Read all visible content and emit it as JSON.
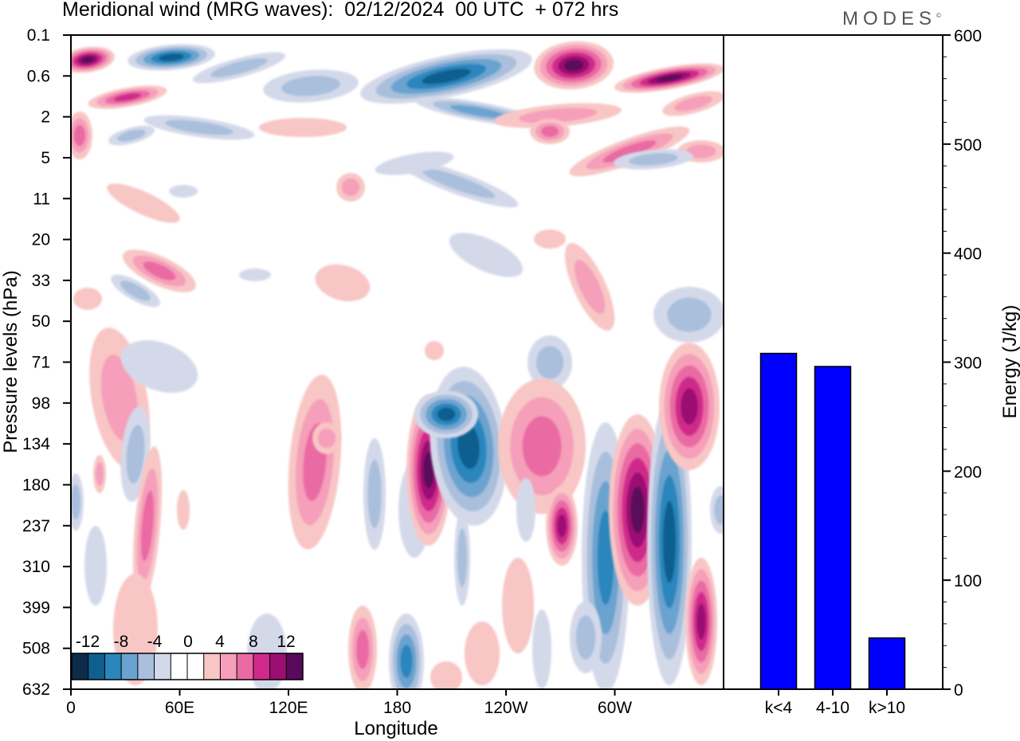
{
  "header": {
    "title": "Meridional wind (MRG waves):  02/12/2024  00 UTC  + 072 hrs",
    "brand": "MODES"
  },
  "chart_data": [
    {
      "type": "heatmap",
      "title": "Meridional wind (MRG waves):  02/12/2024  00 UTC  + 072 hrs",
      "xlabel": "Longitude",
      "ylabel": "Pressure levels (hPa)",
      "x_ticks": [
        "0",
        "60E",
        "120E",
        "180",
        "120W",
        "60W"
      ],
      "y_ticks": [
        "0.1",
        "0.6",
        "2",
        "5",
        "11",
        "20",
        "33",
        "50",
        "71",
        "98",
        "134",
        "180",
        "237",
        "310",
        "399",
        "508",
        "632"
      ],
      "colorbar": {
        "labels": [
          "-12",
          "-8",
          "-4",
          "0",
          "4",
          "8",
          "12"
        ],
        "colors": [
          "#0c2c4a",
          "#0f5f8f",
          "#2a86bd",
          "#6aa3cf",
          "#a9bfdc",
          "#d4d9ea",
          "#ffffff",
          "#ffffff",
          "#f8c6c5",
          "#f59fba",
          "#ea6ba3",
          "#cf2a8b",
          "#9b0f72",
          "#5a0a5a"
        ]
      },
      "negative_color": "#6aa3cf",
      "positive_color": "#ea6ba3"
    },
    {
      "type": "bar",
      "categories": [
        "k<4",
        "4-10",
        "k>10"
      ],
      "values": [
        308,
        296,
        47
      ],
      "ylabel": "Energy (J/kg)",
      "ylim": [
        0,
        600
      ],
      "y_ticks": [
        0,
        100,
        200,
        300,
        400,
        500,
        600
      ],
      "bar_color": "#0000ff"
    }
  ]
}
